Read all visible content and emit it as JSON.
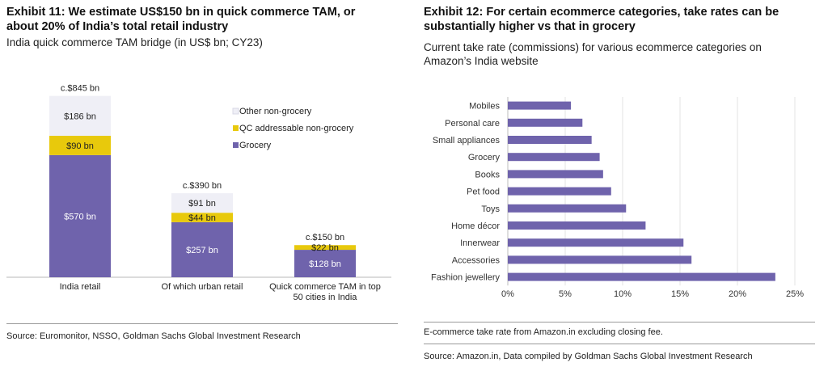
{
  "exhibit11": {
    "title_line1": "Exhibit 11: We estimate US$150 bn in quick commerce TAM, or",
    "title_line2": "about 20% of India’s total retail industry",
    "subtitle": "India quick commerce TAM bridge (in US$ bn; CY23)",
    "source": "Source: Euromonitor, NSSO, Goldman Sachs Global Investment Research"
  },
  "exhibit12": {
    "title_line1": "Exhibit 12: For certain ecommerce categories, take rates can be",
    "title_line2": "substantially higher vs that in grocery",
    "subtitle_line1": "Current take rate (commissions) for various ecommerce categories on",
    "subtitle_line2": "Amazon’s India website",
    "note": "E-commerce take rate from Amazon.in excluding closing fee.",
    "source": "Source: Amazon.in, Data compiled by Goldman Sachs Global Investment Research"
  },
  "chart_data": [
    {
      "type": "bar",
      "stacked": true,
      "categories": [
        "India retail",
        "Of which urban retail",
        "Quick commerce TAM in top 50 cities in India"
      ],
      "category_label_lines": [
        [
          "India retail"
        ],
        [
          "Of which urban retail"
        ],
        [
          "Quick commerce TAM in top",
          "50 cities in India"
        ]
      ],
      "series": [
        {
          "name": "Grocery",
          "values": [
            570,
            257,
            128
          ],
          "labels": [
            "$570 bn",
            "$257 bn",
            "$128 bn"
          ],
          "color": "#6f63ac"
        },
        {
          "name": "QC addressable non-grocery",
          "values": [
            90,
            44,
            22
          ],
          "labels": [
            "$90 bn",
            "$44 bn",
            "$22 bn"
          ],
          "color": "#e8c90c"
        },
        {
          "name": "Other non-grocery",
          "values": [
            186,
            91,
            0
          ],
          "labels": [
            "$186 bn",
            "$91 bn",
            ""
          ],
          "color": "#efeff6"
        }
      ],
      "totals": [
        "c.$845 bn",
        "c.$390 bn",
        "c.$150 bn"
      ],
      "legend": [
        "Other non-grocery",
        "QC addressable non-grocery",
        "Grocery"
      ],
      "legend_position": "top-right",
      "ylim": [
        0,
        860
      ],
      "grid": false
    },
    {
      "type": "bar",
      "orientation": "horizontal",
      "categories": [
        "Mobiles",
        "Personal care",
        "Small appliances",
        "Grocery",
        "Books",
        "Pet food",
        "Toys",
        "Home décor",
        "Innerwear",
        "Accessories",
        "Fashion jewellery"
      ],
      "values": [
        5.5,
        6.5,
        7.3,
        8.0,
        8.3,
        9.0,
        10.3,
        12.0,
        15.3,
        16.0,
        23.3
      ],
      "xlim": [
        0,
        25
      ],
      "xticks": [
        "0%",
        "5%",
        "10%",
        "15%",
        "20%",
        "25%"
      ],
      "color": "#6f63ac",
      "grid": true
    }
  ]
}
